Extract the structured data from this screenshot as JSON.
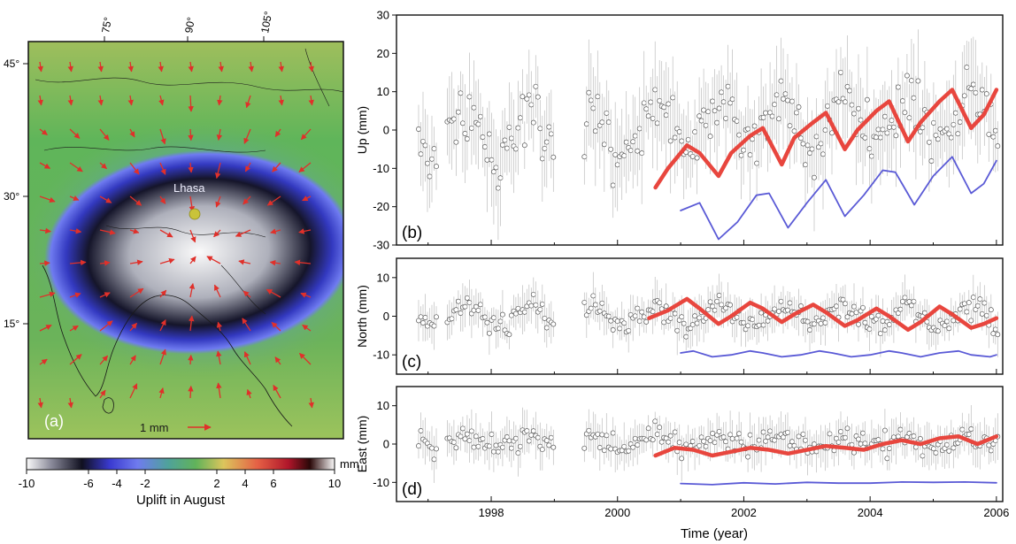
{
  "map": {
    "panel_label": "(a)",
    "city_label": "Lhasa",
    "scale_label": "1 mm",
    "lon_ticks": [
      "75°",
      "90°",
      "105°"
    ],
    "lat_ticks": [
      "45°",
      "30°",
      "15°"
    ],
    "colorbar": {
      "ticks": [
        "-10",
        "-6",
        "-4",
        "-2",
        "2",
        "4",
        "6",
        "10"
      ],
      "unit": "mm",
      "title": "Uplift in August"
    }
  },
  "shared_xlabel": "Time (year)",
  "colors": {
    "fit": "#e8463e",
    "model": "#5a5ad6",
    "obs_marker": "#555555",
    "errorbar": "#bdbdbd",
    "arrow": "#e0302a",
    "city_marker": "#c9c33a"
  },
  "chart_data": [
    {
      "type": "line",
      "panel_label": "(b)",
      "ylabel": "Up (mm)",
      "xlim": [
        1996.5,
        2006.1
      ],
      "ylim": [
        -30,
        30
      ],
      "yticks": [
        "30",
        "20",
        "10",
        "0",
        "-10",
        "-20",
        "-30"
      ],
      "xticks": [],
      "obs": {
        "mean": 2,
        "noise": 6,
        "trend": 2.2,
        "amp": 6,
        "err": 9
      },
      "series": [
        {
          "role": "fit",
          "x": [
            2000.6,
            2000.8,
            2001.1,
            2001.3,
            2001.6,
            2001.8,
            2002.1,
            2002.3,
            2002.6,
            2002.8,
            2003.1,
            2003.3,
            2003.6,
            2003.8,
            2004.1,
            2004.3,
            2004.6,
            2004.8,
            2005.1,
            2005.3,
            2005.6,
            2005.8,
            2006.0
          ],
          "values": [
            -15,
            -10,
            -4,
            -6,
            -12,
            -6,
            -1.5,
            0.5,
            -9,
            -2,
            2,
            4.5,
            -5,
            0,
            5,
            7.5,
            -3,
            2,
            7.5,
            10.5,
            0.5,
            4,
            10.5
          ]
        },
        {
          "role": "model",
          "x": [
            2001.0,
            2001.3,
            2001.6,
            2001.9,
            2002.2,
            2002.4,
            2002.7,
            2003.0,
            2003.3,
            2003.6,
            2003.9,
            2004.2,
            2004.4,
            2004.7,
            2005.0,
            2005.3,
            2005.6,
            2005.8,
            2006.0
          ],
          "values": [
            -21,
            -19,
            -28.5,
            -24,
            -17,
            -16.5,
            -25.5,
            -19,
            -13,
            -22.5,
            -17,
            -10.5,
            -11,
            -19.5,
            -12,
            -7,
            -16.5,
            -14,
            -8
          ]
        }
      ]
    },
    {
      "type": "line",
      "panel_label": "(c)",
      "ylabel": "North (mm)",
      "xlim": [
        1996.5,
        2006.1
      ],
      "ylim": [
        -15,
        15
      ],
      "yticks": [
        "10",
        "0",
        "-10"
      ],
      "xticks": [],
      "obs": {
        "mean": 0,
        "noise": 2.2,
        "trend": 0,
        "amp": 2.5,
        "err": 4
      },
      "series": [
        {
          "role": "fit",
          "x": [
            2000.5,
            2000.8,
            2001.1,
            2001.3,
            2001.6,
            2001.8,
            2002.1,
            2002.3,
            2002.6,
            2002.8,
            2003.1,
            2003.3,
            2003.6,
            2003.8,
            2004.1,
            2004.3,
            2004.6,
            2004.8,
            2005.1,
            2005.3,
            2005.6,
            2005.8,
            2006.0
          ],
          "values": [
            -0.5,
            1.5,
            4.5,
            2,
            -2,
            0,
            3.5,
            2,
            -1.5,
            0.5,
            3,
            1,
            -2.5,
            -1,
            2,
            0,
            -3.5,
            -1.5,
            2.5,
            0.5,
            -3,
            -2,
            -0.5
          ]
        },
        {
          "role": "model",
          "x": [
            2001.0,
            2001.2,
            2001.5,
            2001.8,
            2002.1,
            2002.3,
            2002.6,
            2002.9,
            2003.2,
            2003.4,
            2003.7,
            2004.0,
            2004.3,
            2004.5,
            2004.8,
            2005.1,
            2005.4,
            2005.6,
            2005.9,
            2006.0
          ],
          "values": [
            -9.5,
            -9,
            -10.5,
            -10,
            -9,
            -9.5,
            -10.5,
            -10,
            -9,
            -9.5,
            -10.5,
            -10,
            -9,
            -9.5,
            -10.5,
            -9.5,
            -9,
            -10,
            -10.5,
            -10
          ]
        }
      ]
    },
    {
      "type": "line",
      "panel_label": "(d)",
      "ylabel": "East (mm)",
      "xlabel": "Time (year)",
      "xlim": [
        1996.5,
        2006.1
      ],
      "ylim": [
        -15,
        15
      ],
      "yticks": [
        "10",
        "0",
        "-10"
      ],
      "xticks": [
        "1998",
        "2000",
        "2002",
        "2004",
        "2006"
      ],
      "obs": {
        "mean": 0.5,
        "noise": 2.4,
        "trend": 0.1,
        "amp": 1.5,
        "err": 4
      },
      "series": [
        {
          "role": "fit",
          "x": [
            2000.6,
            2000.9,
            2001.2,
            2001.5,
            2001.8,
            2002.1,
            2002.4,
            2002.7,
            2003.0,
            2003.3,
            2003.6,
            2003.9,
            2004.2,
            2004.5,
            2004.8,
            2005.1,
            2005.4,
            2005.7,
            2006.0
          ],
          "values": [
            -3,
            -1,
            -1.5,
            -3,
            -2,
            -1,
            -1.5,
            -2.5,
            -1.5,
            -0.5,
            -1,
            -1.5,
            0,
            1,
            0,
            1.5,
            2,
            0,
            2
          ]
        },
        {
          "role": "model",
          "x": [
            2001.0,
            2001.5,
            2002.0,
            2002.5,
            2003.0,
            2003.5,
            2004.0,
            2004.5,
            2005.0,
            2005.5,
            2006.0
          ],
          "values": [
            -10.3,
            -10.6,
            -10.1,
            -10.4,
            -10.0,
            -10.2,
            -10.2,
            -9.9,
            -10.0,
            -9.9,
            -10.1
          ]
        }
      ]
    }
  ]
}
